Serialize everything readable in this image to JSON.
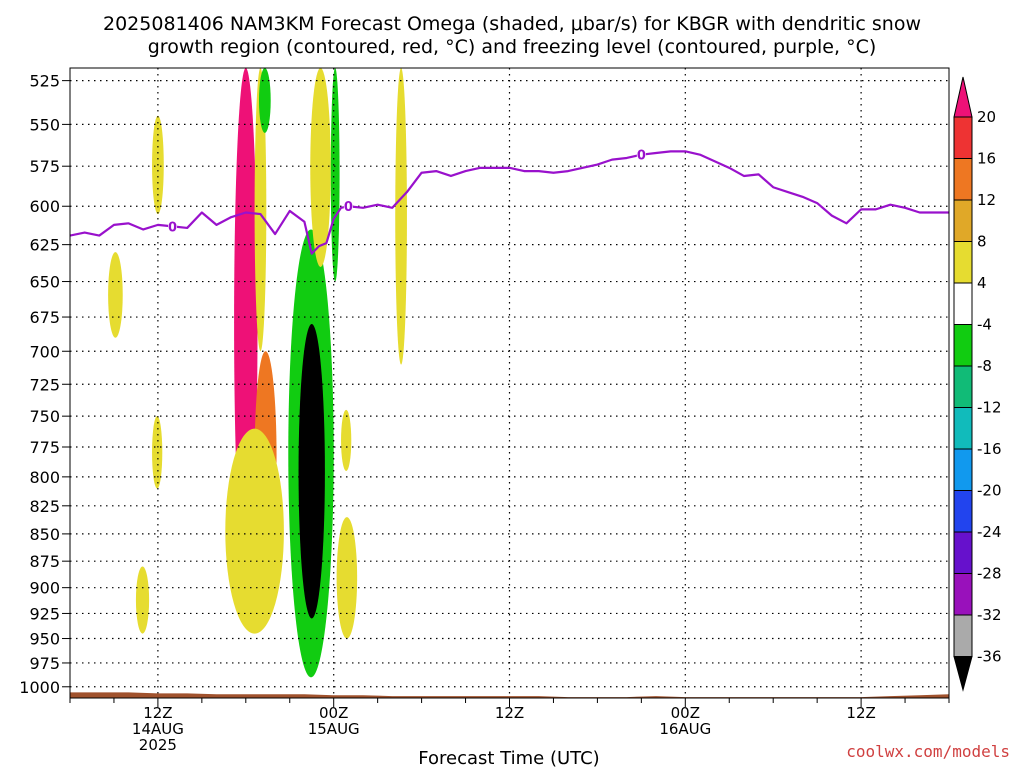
{
  "title_line1": "2025081406 NAM3KM Forecast Omega (shaded, μbar/s) for KBGR with dendritic snow",
  "title_line2": "growth region (contoured, red, °C) and freezing level (contoured, purple, °C)",
  "credit": "coolwx.com/models",
  "credit_color": "#d04040",
  "chart_data": {
    "type": "heatmap",
    "title": "2025081406 NAM3KM Forecast Omega (shaded, μbar/s) for KBGR with dendritic snow growth region (contoured, red, °C) and freezing level (contoured, purple, °C)",
    "xlabel": "Forecast Time (UTC)",
    "ylabel": "",
    "x_units": "hours since 2025-08-14 06Z",
    "xlim": [
      0,
      60
    ],
    "ylim": [
      1012,
      518
    ],
    "y_scale": "pressure (hPa), decreasing upward",
    "grid": true,
    "y_ticks": [
      525,
      550,
      575,
      600,
      625,
      650,
      675,
      700,
      725,
      750,
      775,
      800,
      825,
      850,
      875,
      900,
      925,
      950,
      975,
      1000
    ],
    "x_ticks": [
      {
        "x": 6,
        "lines": [
          "12Z",
          "14AUG",
          "2025"
        ]
      },
      {
        "x": 18,
        "lines": [
          "00Z",
          "15AUG"
        ]
      },
      {
        "x": 30,
        "lines": [
          "12Z"
        ]
      },
      {
        "x": 42,
        "lines": [
          "00Z",
          "16AUG"
        ]
      },
      {
        "x": 54,
        "lines": [
          "12Z"
        ]
      }
    ],
    "colorbar": {
      "ticks": [
        20,
        16,
        12,
        8,
        4,
        -4,
        -8,
        -12,
        -16,
        -20,
        -24,
        -28,
        -32,
        -36
      ],
      "bins": [
        {
          "from": 20,
          "to": 24,
          "color": "#ee1177"
        },
        {
          "from": 16,
          "to": 20,
          "color": "#ee3333"
        },
        {
          "from": 12,
          "to": 16,
          "color": "#ee7722"
        },
        {
          "from": 8,
          "to": 12,
          "color": "#e0a828"
        },
        {
          "from": 4,
          "to": 8,
          "color": "#e6dc30"
        },
        {
          "from": -4,
          "to": 4,
          "color": "#ffffff"
        },
        {
          "from": -8,
          "to": -4,
          "color": "#11cc11"
        },
        {
          "from": -12,
          "to": -8,
          "color": "#11bb77"
        },
        {
          "from": -16,
          "to": -12,
          "color": "#11bbbb"
        },
        {
          "from": -20,
          "to": -16,
          "color": "#1199ee"
        },
        {
          "from": -24,
          "to": -20,
          "color": "#2244ee"
        },
        {
          "from": -28,
          "to": -24,
          "color": "#6611cc"
        },
        {
          "from": -32,
          "to": -28,
          "color": "#9911bb"
        },
        {
          "from": -36,
          "to": -32,
          "color": "#aaaaaa"
        },
        {
          "from": -40,
          "to": -36,
          "color": "#000000"
        }
      ]
    },
    "freezing_level": {
      "label": "0",
      "label_points": [
        [
          7,
          613
        ],
        [
          19,
          600
        ],
        [
          39,
          568
        ]
      ],
      "color": "#9911cc",
      "points": [
        [
          0,
          619
        ],
        [
          1,
          617
        ],
        [
          2,
          619
        ],
        [
          3,
          612
        ],
        [
          4,
          611
        ],
        [
          5,
          615
        ],
        [
          6,
          612
        ],
        [
          7,
          613
        ],
        [
          8,
          614
        ],
        [
          9,
          604
        ],
        [
          10,
          612
        ],
        [
          11,
          607
        ],
        [
          12,
          604
        ],
        [
          13,
          605
        ],
        [
          14,
          618
        ],
        [
          15,
          603
        ],
        [
          16,
          610
        ],
        [
          16.5,
          631
        ],
        [
          17,
          626
        ],
        [
          17.5,
          624
        ],
        [
          18,
          608
        ],
        [
          18.5,
          601
        ],
        [
          19,
          600
        ],
        [
          20,
          601
        ],
        [
          21,
          599
        ],
        [
          22,
          601
        ],
        [
          23,
          591
        ],
        [
          24,
          579
        ],
        [
          25,
          578
        ],
        [
          26,
          581
        ],
        [
          27,
          578
        ],
        [
          28,
          576
        ],
        [
          29,
          576
        ],
        [
          30,
          576
        ],
        [
          31,
          578
        ],
        [
          32,
          578
        ],
        [
          33,
          579
        ],
        [
          34,
          578
        ],
        [
          35,
          576
        ],
        [
          36,
          574
        ],
        [
          37,
          571
        ],
        [
          38,
          570
        ],
        [
          39,
          568
        ],
        [
          40,
          567
        ],
        [
          41,
          566
        ],
        [
          42,
          566
        ],
        [
          43,
          568
        ],
        [
          44,
          572
        ],
        [
          45,
          576
        ],
        [
          46,
          581
        ],
        [
          47,
          580
        ],
        [
          48,
          588
        ],
        [
          49,
          591
        ],
        [
          50,
          594
        ],
        [
          51,
          598
        ],
        [
          52,
          606
        ],
        [
          53,
          611
        ],
        [
          54,
          602
        ],
        [
          55,
          602
        ],
        [
          56,
          599
        ],
        [
          57,
          601
        ],
        [
          58,
          604
        ],
        [
          60,
          604
        ]
      ]
    },
    "omega_features": [
      {
        "name": "updraft-pink-column",
        "value": 22,
        "x": [
          11.2,
          12.8
        ],
        "p": [
          518,
          890
        ]
      },
      {
        "name": "updraft-pink-tail",
        "value": 22,
        "x": [
          11.6,
          12.6
        ],
        "p": [
          870,
          905
        ]
      },
      {
        "name": "updraft-red-core",
        "value": 18,
        "x": [
          13.1,
          13.7
        ],
        "p": [
          755,
          830
        ]
      },
      {
        "name": "updraft-orange-band",
        "value": 14,
        "x": [
          12.6,
          14.1
        ],
        "p": [
          700,
          875
        ]
      },
      {
        "name": "updraft-yellow-envelope",
        "value": 6,
        "x": [
          10.6,
          14.6
        ],
        "p": [
          760,
          945
        ]
      },
      {
        "name": "updraft-yellow-upper",
        "value": 6,
        "x": [
          12.6,
          13.4
        ],
        "p": [
          518,
          700
        ]
      },
      {
        "name": "downdraft-envelope",
        "value": -6,
        "x": [
          14.9,
          18.0
        ],
        "p": [
          615,
          990
        ]
      },
      {
        "name": "downdraft-core",
        "value": -38,
        "x": [
          15.6,
          17.4
        ],
        "p": [
          680,
          930
        ]
      },
      {
        "name": "updraft-narrow-15aug",
        "value": 6,
        "x": [
          16.4,
          17.8
        ],
        "p": [
          518,
          640
        ]
      },
      {
        "name": "downdraft-narrow-15aug",
        "value": -6,
        "x": [
          17.8,
          18.4
        ],
        "p": [
          518,
          650
        ]
      },
      {
        "name": "updraft-yellow-south",
        "value": 6,
        "x": [
          18.2,
          19.6
        ],
        "p": [
          835,
          950
        ]
      },
      {
        "name": "updraft-yellow-mid",
        "value": 6,
        "x": [
          18.5,
          19.2
        ],
        "p": [
          745,
          795
        ]
      },
      {
        "name": "updraft-yellow-tall",
        "value": 6,
        "x": [
          22.2,
          23.0
        ],
        "p": [
          518,
          710
        ]
      },
      {
        "name": "updraft-yellow-early-upper",
        "value": 6,
        "x": [
          5.6,
          6.4
        ],
        "p": [
          545,
          605
        ]
      },
      {
        "name": "updraft-yellow-early-mid",
        "value": 6,
        "x": [
          2.6,
          3.6
        ],
        "p": [
          630,
          690
        ]
      },
      {
        "name": "updraft-yellow-early-low",
        "value": 6,
        "x": [
          5.6,
          6.3
        ],
        "p": [
          750,
          810
        ]
      },
      {
        "name": "updraft-yellow-early-bottom",
        "value": 6,
        "x": [
          4.5,
          5.4
        ],
        "p": [
          880,
          945
        ]
      },
      {
        "name": "downdraft-green-upper",
        "value": -6,
        "x": [
          12.9,
          13.7
        ],
        "p": [
          518,
          555
        ]
      }
    ],
    "terrain_color": "#a0522d",
    "terrain_surface_p": [
      [
        0,
        1006
      ],
      [
        2,
        1006
      ],
      [
        4,
        1006
      ],
      [
        6,
        1007
      ],
      [
        8,
        1007
      ],
      [
        10,
        1008
      ],
      [
        12,
        1008
      ],
      [
        14,
        1008
      ],
      [
        16,
        1008
      ],
      [
        18,
        1009
      ],
      [
        20,
        1009
      ],
      [
        22,
        1010
      ],
      [
        24,
        1010
      ],
      [
        26,
        1010
      ],
      [
        28,
        1010
      ],
      [
        30,
        1010
      ],
      [
        32,
        1010
      ],
      [
        34,
        1011
      ],
      [
        36,
        1011
      ],
      [
        38,
        1011
      ],
      [
        40,
        1010
      ],
      [
        42,
        1011
      ],
      [
        44,
        1011
      ],
      [
        46,
        1011
      ],
      [
        48,
        1011
      ],
      [
        50,
        1011
      ],
      [
        52,
        1011
      ],
      [
        54,
        1011
      ],
      [
        56,
        1010
      ],
      [
        58,
        1009
      ],
      [
        60,
        1008
      ]
    ]
  }
}
